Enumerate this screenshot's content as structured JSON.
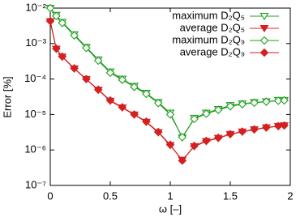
{
  "chart_data": {
    "type": "line",
    "xlabel": "ω [–]",
    "ylabel": "Error [%]",
    "x": [
      0,
      0.05,
      0.1,
      0.2,
      0.3,
      0.4,
      0.5,
      0.6,
      0.7,
      0.8,
      0.9,
      1.0,
      1.1,
      1.2,
      1.3,
      1.4,
      1.5,
      1.6,
      1.7,
      1.8,
      1.9,
      1.95
    ],
    "xlim": [
      0,
      2
    ],
    "xticks": [
      0,
      0.5,
      1,
      1.5,
      2
    ],
    "ylim": [
      1e-07,
      0.01
    ],
    "log_y": true,
    "yticks": [
      {
        "value": 1e-07,
        "label": "10⁻⁷"
      },
      {
        "value": 1e-06,
        "label": "10⁻⁶"
      },
      {
        "value": 1e-05,
        "label": "10⁻⁵"
      },
      {
        "value": 0.0001,
        "label": "10⁻⁴"
      },
      {
        "value": 0.001,
        "label": "10⁻³"
      },
      {
        "value": 0.01,
        "label": "10⁻²"
      }
    ],
    "legend": "top-right",
    "series": [
      {
        "name": "maximum  D₂Q₅",
        "color": "#1e9e1e",
        "marker": "triangle-down",
        "filled": false,
        "values": [
          0.01,
          0.0063,
          0.004,
          0.0018,
          0.00079,
          0.00035,
          0.00016,
          0.0001,
          6.3e-05,
          4e-05,
          2.2e-05,
          1.1e-05,
          2.2e-06,
          7.9e-06,
          1.1e-05,
          1.4e-05,
          1.8e-05,
          2e-05,
          2.2e-05,
          2.3e-05,
          2.5e-05,
          2.5e-05
        ]
      },
      {
        "name": "average  D₂Q₅",
        "color": "#d42020",
        "marker": "triangle-down",
        "filled": true,
        "values": [
          0.0042,
          0.0007,
          0.00042,
          0.000195,
          9.8e-05,
          4.9e-05,
          2.4e-05,
          1.55e-05,
          9.8e-06,
          6.1e-06,
          3.1e-06,
          1.35e-06,
          5.2e-07,
          1.25e-06,
          1.75e-06,
          2.15e-06,
          2.75e-06,
          3.25e-06,
          3.75e-06,
          4.25e-06,
          4.65e-06,
          4.85e-06
        ]
      },
      {
        "name": "maximum  D₂Q₉",
        "color": "#1e9e1e",
        "marker": "diamond",
        "filled": false,
        "values": [
          0.01,
          0.006,
          0.0038,
          0.0017,
          0.00075,
          0.00033,
          0.00015,
          9.5e-05,
          6e-05,
          3.8e-05,
          2.1e-05,
          1e-05,
          2.3e-06,
          7.5e-06,
          1.05e-05,
          1.35e-05,
          1.7e-05,
          1.95e-05,
          2.15e-05,
          2.3e-05,
          2.45e-05,
          2.5e-05
        ]
      },
      {
        "name": "average D₂Q₉",
        "color": "#d42020",
        "marker": "diamond",
        "filled": true,
        "values": [
          0.0043,
          0.00072,
          0.00043,
          0.0002,
          0.0001,
          5e-05,
          2.5e-05,
          1.6e-05,
          1e-05,
          6.3e-06,
          3.2e-06,
          1.4e-06,
          5e-07,
          1.3e-06,
          1.8e-06,
          2.2e-06,
          2.8e-06,
          3.3e-06,
          3.8e-06,
          4.3e-06,
          4.7e-06,
          4.9e-06
        ]
      }
    ]
  }
}
